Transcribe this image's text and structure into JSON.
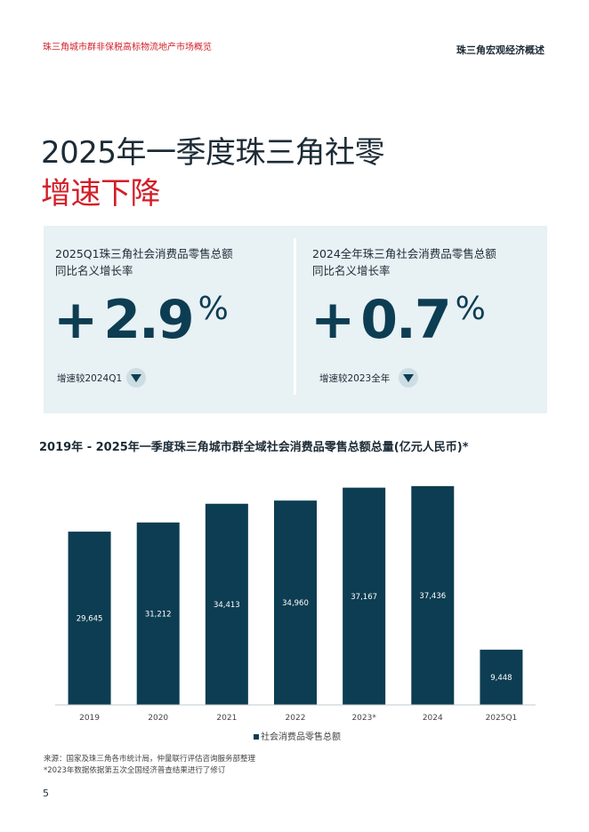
{
  "header": {
    "left": "珠三角城市群非保税高标物流地产市场概览",
    "right": "珠三角宏观经济概述"
  },
  "title": {
    "line1": "2025年一季度珠三角社零",
    "line2": "增速下降"
  },
  "kpis": [
    {
      "label_line1": "2025Q1珠三角社会消费品零售总额",
      "label_line2": "同比名义增长率",
      "sign": "+",
      "value": "2.9",
      "unit": "%",
      "note": "增速较2024Q1",
      "trend": "down"
    },
    {
      "label_line1": "2024全年珠三角社会消费品零售总额",
      "label_line2": "同比名义增长率",
      "sign": "+",
      "value": "0.7",
      "unit": "%",
      "note": "增速较2023全年",
      "trend": "down"
    }
  ],
  "chart_data": {
    "type": "bar",
    "title": "2019年 - 2025年一季度珠三角城市群全域社会消费品零售总额总量(亿元人民币)*",
    "categories": [
      "2019",
      "2020",
      "2021",
      "2022",
      "2023*",
      "2024",
      "2025Q1"
    ],
    "series": [
      {
        "name": "社会消费品零售总额",
        "values": [
          29645,
          31212,
          34413,
          34960,
          37167,
          37436,
          9448
        ]
      }
    ],
    "value_labels": [
      "29,645",
      "31,212",
      "34,413",
      "34,960",
      "37,167",
      "37,436",
      "9,448"
    ],
    "ylim": [
      0,
      40000
    ],
    "grid": false,
    "legend": "bottom-center",
    "color": "#0d3d52"
  },
  "footnotes": {
    "source": "来源：国家及珠三角各市统计局，仲量联行评估咨询服务部整理",
    "note": "*2023年数据依据第五次全国经济普查结果进行了修订"
  },
  "page_number": "5"
}
